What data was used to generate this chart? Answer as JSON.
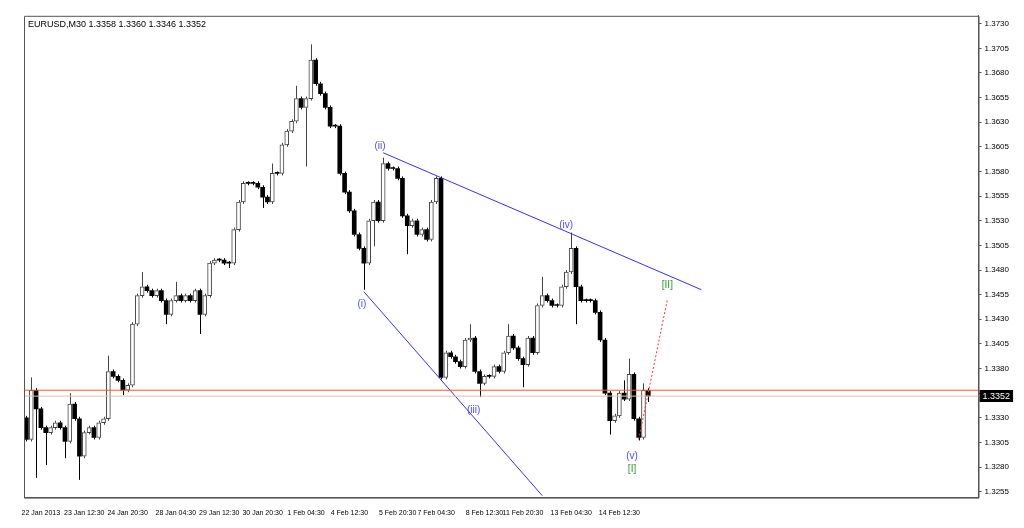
{
  "chart_data": {
    "type": "candlestick",
    "title": "EURUSD,M30 1.3358 1.3360 1.3346 1.3352",
    "categories": [
      null,
      null,
      null,
      "22 Jan 2013",
      null,
      null,
      null,
      null,
      null,
      null,
      null,
      null,
      "23 Jan 12:30",
      null,
      null,
      null,
      null,
      null,
      null,
      null,
      null,
      "24 Jan 20:30",
      null,
      null,
      null,
      null,
      null,
      null,
      null,
      null,
      null,
      "28 Jan 04:30",
      null,
      null,
      null,
      null,
      null,
      null,
      null,
      null,
      "29 Jan 12:30",
      null,
      null,
      null,
      null,
      null,
      null,
      null,
      null,
      "30 Jan 20:30",
      null,
      null,
      null,
      null,
      null,
      null,
      null,
      null,
      "1 Feb 04:30",
      null,
      null,
      null,
      null,
      null,
      null,
      null,
      null,
      "4 Feb 12:30",
      null,
      null,
      null,
      null,
      null,
      null,
      null,
      null,
      null,
      "5 Feb 20:30",
      null,
      null,
      null,
      null,
      null,
      null,
      null,
      "7 Feb 04:30",
      null,
      null,
      null,
      null,
      null,
      null,
      null,
      null,
      null,
      "8 Feb 12:30",
      null,
      null,
      null,
      null,
      null,
      null,
      null,
      "11 Feb 20:30",
      null,
      null,
      null,
      null,
      null,
      null,
      null,
      null,
      null,
      "13 Feb 04:30",
      null,
      null,
      null,
      null,
      null,
      null,
      null,
      null,
      null,
      "14 Feb 12:30",
      null,
      null,
      null,
      null,
      null,
      null,
      null,
      null,
      null,
      null,
      null,
      null,
      null,
      null,
      null,
      null,
      null,
      null,
      null,
      null,
      null,
      null,
      null,
      null,
      null,
      null,
      null,
      null,
      null,
      null,
      null,
      null,
      null,
      null,
      null,
      null,
      null,
      null,
      null,
      null,
      null,
      null,
      null,
      null,
      null,
      null,
      null,
      null,
      null,
      null,
      null,
      null,
      null,
      null,
      null,
      null,
      null,
      null,
      null,
      null,
      null,
      null,
      null,
      null,
      null,
      null,
      null,
      null,
      null,
      null,
      null,
      null,
      null,
      null
    ],
    "ohlc": [
      [
        1.333,
        1.3332,
        1.3306,
        1.3308
      ],
      [
        1.3308,
        1.3371,
        1.3306,
        1.3358
      ],
      [
        1.3358,
        1.336,
        1.3269,
        1.3339
      ],
      [
        1.3339,
        1.3341,
        1.3318,
        1.332
      ],
      [
        1.332,
        1.3322,
        1.3282,
        1.3315
      ],
      [
        1.3315,
        1.3322,
        1.3313,
        1.332
      ],
      [
        1.332,
        1.3327,
        1.3318,
        1.3325
      ],
      [
        1.3325,
        1.3327,
        1.3318,
        1.332
      ],
      [
        1.332,
        1.3322,
        1.3289,
        1.3306
      ],
      [
        1.3306,
        1.3355,
        1.3304,
        1.3344
      ],
      [
        1.3344,
        1.3346,
        1.3327,
        1.3329
      ],
      [
        1.3329,
        1.3331,
        1.3267,
        1.3291
      ],
      [
        1.3291,
        1.3317,
        1.3289,
        1.3315
      ],
      [
        1.3315,
        1.3322,
        1.3313,
        1.332
      ],
      [
        1.332,
        1.3322,
        1.3308,
        1.331
      ],
      [
        1.331,
        1.3327,
        1.3308,
        1.3325
      ],
      [
        1.3325,
        1.3331,
        1.3323,
        1.3329
      ],
      [
        1.3329,
        1.3393,
        1.3327,
        1.3377
      ],
      [
        1.3377,
        1.3379,
        1.337,
        1.3372
      ],
      [
        1.3372,
        1.3374,
        1.3366,
        1.3368
      ],
      [
        1.3368,
        1.337,
        1.3353,
        1.3358
      ],
      [
        1.3358,
        1.3365,
        1.3356,
        1.3363
      ],
      [
        1.3363,
        1.3427,
        1.3361,
        1.3425
      ],
      [
        1.3425,
        1.3456,
        1.3423,
        1.3454
      ],
      [
        1.3454,
        1.3478,
        1.3452,
        1.3463
      ],
      [
        1.3463,
        1.3465,
        1.3457,
        1.3459
      ],
      [
        1.3459,
        1.3461,
        1.3452,
        1.3454
      ],
      [
        1.3454,
        1.3461,
        1.3452,
        1.3459
      ],
      [
        1.3459,
        1.3461,
        1.3447,
        1.3449
      ],
      [
        1.3449,
        1.3451,
        1.3425,
        1.3435
      ],
      [
        1.3435,
        1.3451,
        1.3433,
        1.3449
      ],
      [
        1.3449,
        1.3468,
        1.3447,
        1.3454
      ],
      [
        1.3454,
        1.3456,
        1.3447,
        1.3449
      ],
      [
        1.3449,
        1.3456,
        1.3447,
        1.3454
      ],
      [
        1.3454,
        1.3456,
        1.3447,
        1.3449
      ],
      [
        1.3449,
        1.3461,
        1.3447,
        1.3459
      ],
      [
        1.3459,
        1.3461,
        1.3415,
        1.3435
      ],
      [
        1.3435,
        1.3456,
        1.3433,
        1.3454
      ],
      [
        1.3454,
        1.3489,
        1.3452,
        1.3487
      ],
      [
        1.3487,
        1.3492,
        1.3485,
        1.349
      ],
      [
        1.349,
        1.3492,
        1.3488,
        1.349
      ],
      [
        1.349,
        1.3492,
        1.3485,
        1.3487
      ],
      [
        1.3487,
        1.3489,
        1.3482,
        1.3487
      ],
      [
        1.3487,
        1.3523,
        1.3485,
        1.3521
      ],
      [
        1.3521,
        1.3551,
        1.3519,
        1.3549
      ],
      [
        1.3549,
        1.357,
        1.3547,
        1.3568
      ],
      [
        1.3568,
        1.357,
        1.3566,
        1.3568
      ],
      [
        1.3568,
        1.357,
        1.3566,
        1.3568
      ],
      [
        1.3568,
        1.357,
        1.3562,
        1.3564
      ],
      [
        1.3564,
        1.3566,
        1.3543,
        1.3554
      ],
      [
        1.3554,
        1.3556,
        1.3547,
        1.3549
      ],
      [
        1.3549,
        1.3588,
        1.3547,
        1.3578
      ],
      [
        1.3578,
        1.358,
        1.3576,
        1.3578
      ],
      [
        1.3578,
        1.3609,
        1.3576,
        1.3607
      ],
      [
        1.3607,
        1.3623,
        1.3605,
        1.3621
      ],
      [
        1.3621,
        1.3633,
        1.3619,
        1.3631
      ],
      [
        1.3631,
        1.3667,
        1.3629,
        1.3654
      ],
      [
        1.3654,
        1.3656,
        1.3643,
        1.3645
      ],
      [
        1.3645,
        1.3656,
        1.3585,
        1.3654
      ],
      [
        1.3654,
        1.3709,
        1.3652,
        1.3693
      ],
      [
        1.3693,
        1.3695,
        1.3667,
        1.3669
      ],
      [
        1.3669,
        1.3671,
        1.3657,
        1.3659
      ],
      [
        1.3659,
        1.3661,
        1.3643,
        1.3645
      ],
      [
        1.3645,
        1.3647,
        1.3624,
        1.3626
      ],
      [
        1.3626,
        1.3628,
        1.3624,
        1.3626
      ],
      [
        1.3626,
        1.3628,
        1.3576,
        1.3578
      ],
      [
        1.3578,
        1.358,
        1.3557,
        1.3559
      ],
      [
        1.3559,
        1.3561,
        1.3538,
        1.354
      ],
      [
        1.354,
        1.3542,
        1.3514,
        1.3516
      ],
      [
        1.3516,
        1.3518,
        1.35,
        1.3502
      ],
      [
        1.3502,
        1.3504,
        1.346,
        1.3487
      ],
      [
        1.3487,
        1.3532,
        1.3485,
        1.353
      ],
      [
        1.353,
        1.3551,
        1.3504,
        1.3549
      ],
      [
        1.3549,
        1.3551,
        1.3528,
        1.353
      ],
      [
        1.353,
        1.3594,
        1.3528,
        1.3588
      ],
      [
        1.3588,
        1.359,
        1.3581,
        1.3583
      ],
      [
        1.3583,
        1.3585,
        1.3581,
        1.3583
      ],
      [
        1.3583,
        1.3585,
        1.3571,
        1.3573
      ],
      [
        1.3573,
        1.3575,
        1.3533,
        1.3535
      ],
      [
        1.3535,
        1.3537,
        1.3496,
        1.3525
      ],
      [
        1.3525,
        1.3532,
        1.3523,
        1.353
      ],
      [
        1.353,
        1.3532,
        1.3514,
        1.3516
      ],
      [
        1.3516,
        1.3523,
        1.3514,
        1.3521
      ],
      [
        1.3521,
        1.3523,
        1.3509,
        1.3511
      ],
      [
        1.3511,
        1.3551,
        1.3509,
        1.3549
      ],
      [
        1.3549,
        1.3575,
        1.3547,
        1.3573
      ],
      [
        1.3573,
        1.3575,
        1.3369,
        1.3371
      ],
      [
        1.3371,
        1.3398,
        1.3369,
        1.3396
      ],
      [
        1.3396,
        1.3398,
        1.339,
        1.3392
      ],
      [
        1.3392,
        1.3394,
        1.3385,
        1.3387
      ],
      [
        1.3387,
        1.3389,
        1.338,
        1.3382
      ],
      [
        1.3382,
        1.3411,
        1.338,
        1.3409
      ],
      [
        1.3409,
        1.3425,
        1.3407,
        1.3411
      ],
      [
        1.3411,
        1.3413,
        1.3375,
        1.3377
      ],
      [
        1.3377,
        1.3379,
        1.3351,
        1.3365
      ],
      [
        1.3365,
        1.3374,
        1.3363,
        1.3372
      ],
      [
        1.3372,
        1.3374,
        1.337,
        1.3372
      ],
      [
        1.3372,
        1.3384,
        1.337,
        1.3382
      ],
      [
        1.3382,
        1.3384,
        1.3375,
        1.3377
      ],
      [
        1.3377,
        1.3398,
        1.3375,
        1.3396
      ],
      [
        1.3396,
        1.3425,
        1.3394,
        1.3413
      ],
      [
        1.3413,
        1.3415,
        1.3399,
        1.3401
      ],
      [
        1.3401,
        1.3403,
        1.3388,
        1.339
      ],
      [
        1.339,
        1.3392,
        1.3361,
        1.3384
      ],
      [
        1.3384,
        1.3413,
        1.3382,
        1.3411
      ],
      [
        1.3411,
        1.3413,
        1.3394,
        1.3396
      ],
      [
        1.3396,
        1.3446,
        1.3394,
        1.3444
      ],
      [
        1.3444,
        1.3473,
        1.3442,
        1.3454
      ],
      [
        1.3454,
        1.3456,
        1.3447,
        1.3449
      ],
      [
        1.3449,
        1.3451,
        1.3442,
        1.3444
      ],
      [
        1.3444,
        1.3446,
        1.3442,
        1.3444
      ],
      [
        1.3444,
        1.3465,
        1.3442,
        1.3463
      ],
      [
        1.3463,
        1.348,
        1.3461,
        1.3478
      ],
      [
        1.3478,
        1.3518,
        1.3476,
        1.3502
      ],
      [
        1.3502,
        1.3504,
        1.3425,
        1.3463
      ],
      [
        1.3463,
        1.3465,
        1.3447,
        1.3449
      ],
      [
        1.3449,
        1.3451,
        1.3447,
        1.3449
      ],
      [
        1.3449,
        1.3451,
        1.3447,
        1.3449
      ],
      [
        1.3449,
        1.3451,
        1.3435,
        1.3437
      ],
      [
        1.3437,
        1.3439,
        1.3407,
        1.3409
      ],
      [
        1.3409,
        1.3411,
        1.3353,
        1.3355
      ],
      [
        1.3355,
        1.3357,
        1.3313,
        1.3327
      ],
      [
        1.3327,
        1.3334,
        1.3325,
        1.3332
      ],
      [
        1.3332,
        1.3357,
        1.333,
        1.3355
      ],
      [
        1.3355,
        1.3368,
        1.3347,
        1.3349
      ],
      [
        1.3349,
        1.339,
        1.3347,
        1.3374
      ],
      [
        1.3374,
        1.3376,
        1.3327,
        1.3329
      ],
      [
        1.3329,
        1.3331,
        1.3307,
        1.331
      ],
      [
        1.331,
        1.3365,
        1.3308,
        1.3358
      ],
      [
        1.3358,
        1.336,
        1.3346,
        1.3352
      ],
      null,
      null,
      null,
      null,
      null,
      null,
      null,
      null,
      null,
      null,
      null,
      null,
      null,
      null,
      null,
      null,
      null,
      null,
      null,
      null,
      null,
      null,
      null,
      null,
      null,
      null,
      null,
      null,
      null,
      null,
      null,
      null,
      null,
      null,
      null,
      null,
      null,
      null,
      null,
      null,
      null,
      null,
      null,
      null,
      null,
      null,
      null,
      null,
      null,
      null,
      null,
      null,
      null,
      null,
      null,
      null,
      null,
      null,
      null,
      null,
      null,
      null,
      null,
      null,
      null,
      null,
      null,
      null
    ],
    "colors": [
      "#000000",
      "#444444",
      "#000000",
      "#000000",
      "#000000",
      "#444444",
      "#444444",
      "#000000",
      "#000000",
      "#444444",
      "#000000",
      "#000000",
      "#444444",
      "#444444",
      "#000000",
      "#444444",
      "#444444",
      "#444444",
      "#000000",
      "#000000",
      "#000000",
      "#444444",
      "#444444",
      "#444444",
      "#444444",
      "#000000",
      "#000000",
      "#444444",
      "#000000",
      "#000000",
      "#444444",
      "#444444",
      "#000000",
      "#444444",
      "#000000",
      "#444444",
      "#000000",
      "#444444",
      "#444444",
      "#444444",
      "#000000",
      "#000000",
      "#000000",
      "#444444",
      "#444444",
      "#444444",
      "#000000",
      "#000000",
      "#000000",
      "#000000",
      "#000000",
      "#444444",
      "#000000",
      "#444444",
      "#444444",
      "#444444",
      "#444444",
      "#000000",
      "#444444",
      "#444444",
      "#000000",
      "#000000",
      "#000000",
      "#000000",
      "#000000",
      "#000000",
      "#000000",
      "#000000",
      "#000000",
      "#000000",
      "#000000",
      "#444444",
      "#444444",
      "#000000",
      "#444444",
      "#000000",
      "#000000",
      "#000000",
      "#000000",
      "#000000",
      "#444444",
      "#000000",
      "#444444",
      "#000000",
      "#444444",
      "#444444",
      "#000000",
      "#444444",
      "#000000",
      "#000000",
      "#000000",
      "#444444",
      "#444444",
      "#000000",
      "#000000",
      "#444444",
      "#000000",
      "#444444",
      "#000000",
      "#444444",
      "#444444",
      "#000000",
      "#000000",
      "#000000",
      "#444444",
      "#000000",
      "#444444",
      "#444444",
      "#000000",
      "#000000",
      "#000000",
      "#444444",
      "#444444",
      "#444444",
      "#000000",
      "#000000",
      "#000000",
      "#000000",
      "#000000",
      "#000000",
      "#000000",
      "#000000",
      "#444444",
      "#444444",
      "#000000",
      "#444444",
      "#000000",
      "#000000",
      "#444444",
      "#000000",
      null,
      null,
      null,
      null,
      null,
      null,
      null,
      null,
      null,
      null,
      null,
      null,
      null,
      null,
      null,
      null,
      null,
      null,
      null,
      null,
      null,
      null,
      null,
      null,
      null,
      null,
      null,
      null,
      null,
      null,
      null,
      null,
      null,
      null,
      null,
      null,
      null,
      null,
      null,
      null,
      null,
      null,
      null,
      null,
      null,
      null,
      null,
      null,
      null,
      null,
      null,
      null,
      null,
      null,
      null,
      null,
      null,
      null,
      null,
      null,
      null,
      null,
      null,
      null,
      null,
      null,
      null,
      null
    ],
    "series": [
      {
        "type": "line",
        "color": "#3333ff",
        "line_style": "solid",
        "values": [
          null,
          null,
          null,
          null,
          null,
          null,
          null,
          null,
          null,
          null,
          null,
          null,
          null,
          null,
          null,
          null,
          null,
          null,
          null,
          null,
          null,
          null,
          null,
          null,
          null,
          null,
          null,
          null,
          null,
          null,
          null,
          null,
          null,
          null,
          null,
          null,
          null,
          null,
          null,
          null,
          null,
          null,
          null,
          null,
          null,
          null,
          null,
          null,
          null,
          null,
          null,
          null,
          null,
          null,
          null,
          null,
          null,
          null,
          null,
          null,
          null,
          null,
          null,
          null,
          null,
          null,
          null,
          null,
          null,
          null,
          null,
          null,
          null,
          null,
          1.3599,
          null,
          null,
          null,
          null,
          null,
          null,
          null,
          null,
          null,
          null,
          null,
          null,
          null,
          null,
          null,
          null,
          null,
          null,
          null,
          null,
          null,
          null,
          null,
          null,
          null,
          null,
          null,
          null,
          null,
          null,
          null,
          null,
          null,
          null,
          null,
          null,
          null,
          null,
          null,
          null,
          null,
          null,
          null,
          null,
          null,
          null,
          null,
          null,
          null,
          null,
          null,
          null,
          null,
          null,
          null,
          null,
          null,
          null,
          null,
          null,
          null,
          null,
          null,
          null,
          null,
          1.346,
          null,
          null,
          null,
          null,
          null,
          null,
          null,
          null,
          null,
          null,
          null,
          null,
          null,
          null,
          null,
          null,
          null,
          null,
          null,
          null,
          null,
          null,
          null,
          null,
          null,
          null,
          null,
          null,
          null,
          null,
          null,
          null,
          null,
          null,
          null,
          null,
          null,
          null,
          null,
          null,
          null,
          null,
          null,
          null,
          null,
          null,
          null,
          null,
          null,
          null,
          null,
          null,
          null,
          null,
          null,
          null,
          null
        ]
      },
      {
        "type": "line",
        "color": "#3333ff",
        "line_style": "solid",
        "values": [
          null,
          null,
          null,
          null,
          null,
          null,
          null,
          null,
          null,
          null,
          null,
          null,
          null,
          null,
          null,
          null,
          null,
          null,
          null,
          null,
          null,
          null,
          null,
          null,
          null,
          null,
          null,
          null,
          null,
          null,
          null,
          null,
          null,
          null,
          null,
          null,
          null,
          null,
          null,
          null,
          null,
          null,
          null,
          null,
          null,
          null,
          null,
          null,
          null,
          null,
          null,
          null,
          null,
          null,
          null,
          null,
          null,
          null,
          null,
          null,
          null,
          null,
          null,
          null,
          null,
          null,
          null,
          null,
          null,
          null,
          1.3458,
          null,
          null,
          null,
          null,
          null,
          null,
          null,
          null,
          null,
          null,
          null,
          null,
          null,
          null,
          null,
          null,
          null,
          null,
          null,
          null,
          null,
          null,
          null,
          null,
          null,
          null,
          null,
          null,
          null,
          null,
          null,
          null,
          null,
          null,
          null,
          null,
          1.3251,
          null,
          null,
          null,
          null,
          null,
          null,
          null,
          null,
          null,
          null,
          null,
          null,
          null,
          null,
          null,
          null,
          null,
          null,
          null,
          null,
          null,
          null,
          null,
          null,
          null,
          null,
          null,
          null,
          null,
          null,
          null,
          null,
          null,
          null,
          null,
          null,
          null,
          null,
          null,
          null,
          null,
          null,
          null,
          null,
          null,
          null,
          null,
          null,
          null,
          null,
          null,
          null,
          null,
          null,
          null,
          null,
          null,
          null,
          null,
          null,
          null,
          null,
          null,
          null,
          null,
          null,
          null,
          null,
          null,
          null,
          null,
          null,
          null,
          null,
          null,
          null,
          null,
          null,
          null,
          null,
          null,
          null,
          null,
          null,
          null,
          null,
          null,
          null,
          null,
          null
        ]
      },
      {
        "type": "line",
        "color": "#ff3333",
        "line_style": "dotted",
        "values": [
          null,
          null,
          null,
          null,
          null,
          null,
          null,
          null,
          null,
          null,
          null,
          null,
          null,
          null,
          null,
          null,
          null,
          null,
          null,
          null,
          null,
          null,
          null,
          null,
          null,
          null,
          null,
          null,
          null,
          null,
          null,
          null,
          null,
          null,
          null,
          null,
          null,
          null,
          null,
          null,
          null,
          null,
          null,
          null,
          null,
          null,
          null,
          null,
          null,
          null,
          null,
          null,
          null,
          null,
          null,
          null,
          null,
          null,
          null,
          null,
          null,
          null,
          null,
          null,
          null,
          null,
          null,
          null,
          null,
          null,
          null,
          null,
          null,
          null,
          null,
          null,
          null,
          null,
          null,
          null,
          null,
          null,
          null,
          null,
          null,
          null,
          null,
          null,
          null,
          null,
          null,
          null,
          null,
          null,
          null,
          null,
          null,
          null,
          null,
          null,
          null,
          null,
          null,
          null,
          null,
          null,
          null,
          null,
          null,
          null,
          null,
          null,
          null,
          null,
          null,
          null,
          null,
          null,
          null,
          null,
          null,
          null,
          null,
          null,
          null,
          null,
          null,
          1.3308,
          null,
          null,
          null,
          null,
          null,
          1.3451,
          null,
          null,
          null,
          null,
          null,
          null,
          null,
          null,
          null,
          null,
          null,
          null,
          null,
          null,
          null,
          null,
          null,
          null,
          null,
          null,
          null,
          null,
          null,
          null,
          null,
          null,
          null,
          null,
          null,
          null,
          null,
          null,
          null,
          null,
          null,
          null,
          null,
          null,
          null,
          null,
          null,
          null,
          null,
          null,
          null,
          null,
          null,
          null,
          null,
          null,
          null,
          null,
          null,
          null,
          null,
          null,
          null,
          null,
          null,
          null,
          null,
          null,
          null,
          null
        ]
      }
    ],
    "ylim": [
      1.3249,
      1.3738
    ],
    "yticks": [
      1.3255,
      {
        "value": 1.328,
        "label": "1.3280"
      },
      1.3305,
      {
        "value": 1.333,
        "label": "1.3330"
      },
      {
        "value": 1.3355,
        "label": null
      },
      {
        "value": 1.338,
        "label": "1.3380"
      },
      1.3405,
      {
        "value": 1.343,
        "label": "1.3430"
      },
      1.3455,
      {
        "value": 1.348,
        "label": "1.3480"
      },
      1.3505,
      {
        "value": 1.353,
        "label": "1.3530"
      },
      1.3555,
      {
        "value": 1.358,
        "label": "1.3580"
      },
      1.3605,
      {
        "value": 1.363,
        "label": "1.3630"
      },
      1.3655,
      {
        "value": 1.368,
        "label": "1.3680"
      },
      1.3705,
      {
        "value": 1.373,
        "label": "1.3730"
      }
    ],
    "ref_lines": [
      {
        "axis": "y",
        "value": 1.3358,
        "color": "#ff5a1e"
      },
      {
        "axis": "y",
        "value": 1.3352,
        "color": "#c8c8c8",
        "label": "1.3352"
      }
    ],
    "annotations": [
      "(i)",
      "(ii)",
      "(iii)",
      "(iv)",
      "(v)",
      "[I]",
      "[II]"
    ],
    "grid": false,
    "legend": false
  }
}
